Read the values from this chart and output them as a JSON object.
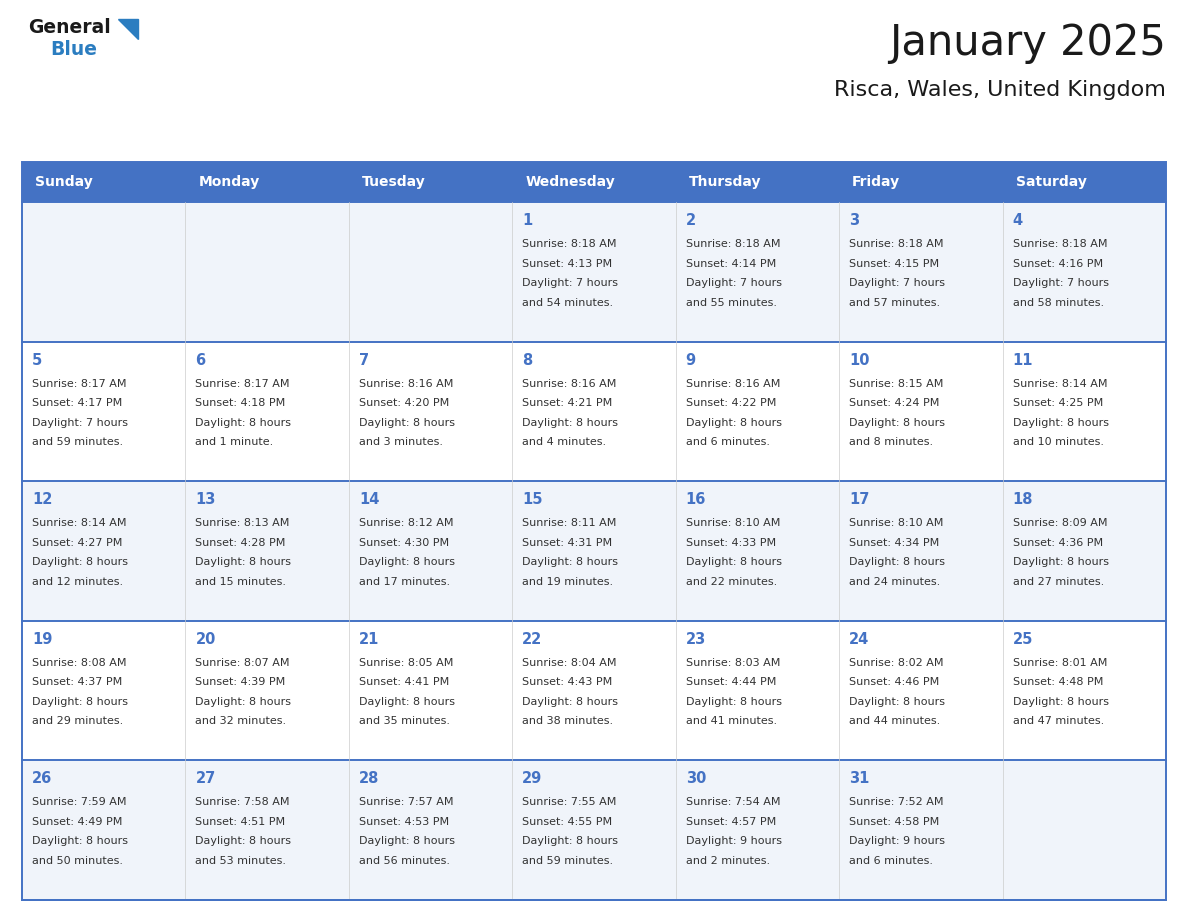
{
  "title": "January 2025",
  "subtitle": "Risca, Wales, United Kingdom",
  "header_color": "#4472C4",
  "header_text_color": "#FFFFFF",
  "day_names": [
    "Sunday",
    "Monday",
    "Tuesday",
    "Wednesday",
    "Thursday",
    "Friday",
    "Saturday"
  ],
  "background_color": "#FFFFFF",
  "cell_odd_color": "#F0F4FA",
  "cell_even_color": "#FFFFFF",
  "grid_color": "#4472C4",
  "text_color": "#333333",
  "days": [
    {
      "day": 1,
      "col": 3,
      "row": 0,
      "sunrise": "8:18 AM",
      "sunset": "4:13 PM",
      "daylight": "7 hours and 54 minutes."
    },
    {
      "day": 2,
      "col": 4,
      "row": 0,
      "sunrise": "8:18 AM",
      "sunset": "4:14 PM",
      "daylight": "7 hours and 55 minutes."
    },
    {
      "day": 3,
      "col": 5,
      "row": 0,
      "sunrise": "8:18 AM",
      "sunset": "4:15 PM",
      "daylight": "7 hours and 57 minutes."
    },
    {
      "day": 4,
      "col": 6,
      "row": 0,
      "sunrise": "8:18 AM",
      "sunset": "4:16 PM",
      "daylight": "7 hours and 58 minutes."
    },
    {
      "day": 5,
      "col": 0,
      "row": 1,
      "sunrise": "8:17 AM",
      "sunset": "4:17 PM",
      "daylight": "7 hours and 59 minutes."
    },
    {
      "day": 6,
      "col": 1,
      "row": 1,
      "sunrise": "8:17 AM",
      "sunset": "4:18 PM",
      "daylight": "8 hours and 1 minute."
    },
    {
      "day": 7,
      "col": 2,
      "row": 1,
      "sunrise": "8:16 AM",
      "sunset": "4:20 PM",
      "daylight": "8 hours and 3 minutes."
    },
    {
      "day": 8,
      "col": 3,
      "row": 1,
      "sunrise": "8:16 AM",
      "sunset": "4:21 PM",
      "daylight": "8 hours and 4 minutes."
    },
    {
      "day": 9,
      "col": 4,
      "row": 1,
      "sunrise": "8:16 AM",
      "sunset": "4:22 PM",
      "daylight": "8 hours and 6 minutes."
    },
    {
      "day": 10,
      "col": 5,
      "row": 1,
      "sunrise": "8:15 AM",
      "sunset": "4:24 PM",
      "daylight": "8 hours and 8 minutes."
    },
    {
      "day": 11,
      "col": 6,
      "row": 1,
      "sunrise": "8:14 AM",
      "sunset": "4:25 PM",
      "daylight": "8 hours and 10 minutes."
    },
    {
      "day": 12,
      "col": 0,
      "row": 2,
      "sunrise": "8:14 AM",
      "sunset": "4:27 PM",
      "daylight": "8 hours and 12 minutes."
    },
    {
      "day": 13,
      "col": 1,
      "row": 2,
      "sunrise": "8:13 AM",
      "sunset": "4:28 PM",
      "daylight": "8 hours and 15 minutes."
    },
    {
      "day": 14,
      "col": 2,
      "row": 2,
      "sunrise": "8:12 AM",
      "sunset": "4:30 PM",
      "daylight": "8 hours and 17 minutes."
    },
    {
      "day": 15,
      "col": 3,
      "row": 2,
      "sunrise": "8:11 AM",
      "sunset": "4:31 PM",
      "daylight": "8 hours and 19 minutes."
    },
    {
      "day": 16,
      "col": 4,
      "row": 2,
      "sunrise": "8:10 AM",
      "sunset": "4:33 PM",
      "daylight": "8 hours and 22 minutes."
    },
    {
      "day": 17,
      "col": 5,
      "row": 2,
      "sunrise": "8:10 AM",
      "sunset": "4:34 PM",
      "daylight": "8 hours and 24 minutes."
    },
    {
      "day": 18,
      "col": 6,
      "row": 2,
      "sunrise": "8:09 AM",
      "sunset": "4:36 PM",
      "daylight": "8 hours and 27 minutes."
    },
    {
      "day": 19,
      "col": 0,
      "row": 3,
      "sunrise": "8:08 AM",
      "sunset": "4:37 PM",
      "daylight": "8 hours and 29 minutes."
    },
    {
      "day": 20,
      "col": 1,
      "row": 3,
      "sunrise": "8:07 AM",
      "sunset": "4:39 PM",
      "daylight": "8 hours and 32 minutes."
    },
    {
      "day": 21,
      "col": 2,
      "row": 3,
      "sunrise": "8:05 AM",
      "sunset": "4:41 PM",
      "daylight": "8 hours and 35 minutes."
    },
    {
      "day": 22,
      "col": 3,
      "row": 3,
      "sunrise": "8:04 AM",
      "sunset": "4:43 PM",
      "daylight": "8 hours and 38 minutes."
    },
    {
      "day": 23,
      "col": 4,
      "row": 3,
      "sunrise": "8:03 AM",
      "sunset": "4:44 PM",
      "daylight": "8 hours and 41 minutes."
    },
    {
      "day": 24,
      "col": 5,
      "row": 3,
      "sunrise": "8:02 AM",
      "sunset": "4:46 PM",
      "daylight": "8 hours and 44 minutes."
    },
    {
      "day": 25,
      "col": 6,
      "row": 3,
      "sunrise": "8:01 AM",
      "sunset": "4:48 PM",
      "daylight": "8 hours and 47 minutes."
    },
    {
      "day": 26,
      "col": 0,
      "row": 4,
      "sunrise": "7:59 AM",
      "sunset": "4:49 PM",
      "daylight": "8 hours and 50 minutes."
    },
    {
      "day": 27,
      "col": 1,
      "row": 4,
      "sunrise": "7:58 AM",
      "sunset": "4:51 PM",
      "daylight": "8 hours and 53 minutes."
    },
    {
      "day": 28,
      "col": 2,
      "row": 4,
      "sunrise": "7:57 AM",
      "sunset": "4:53 PM",
      "daylight": "8 hours and 56 minutes."
    },
    {
      "day": 29,
      "col": 3,
      "row": 4,
      "sunrise": "7:55 AM",
      "sunset": "4:55 PM",
      "daylight": "8 hours and 59 minutes."
    },
    {
      "day": 30,
      "col": 4,
      "row": 4,
      "sunrise": "7:54 AM",
      "sunset": "4:57 PM",
      "daylight": "9 hours and 2 minutes."
    },
    {
      "day": 31,
      "col": 5,
      "row": 4,
      "sunrise": "7:52 AM",
      "sunset": "4:58 PM",
      "daylight": "9 hours and 6 minutes."
    }
  ],
  "logo_general_color": "#1a1a1a",
  "logo_blue_color": "#2B7DC0",
  "num_rows": 5
}
